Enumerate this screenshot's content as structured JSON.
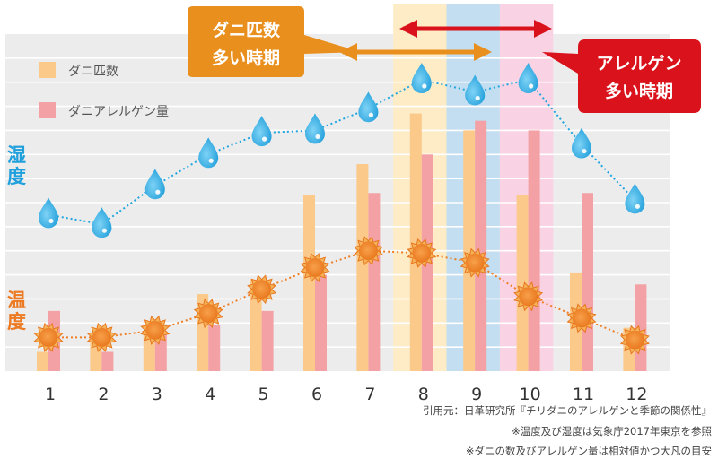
{
  "chart_data": {
    "type": "bar",
    "categories": [
      "1",
      "2",
      "3",
      "4",
      "5",
      "6",
      "7",
      "8",
      "9",
      "10",
      "11",
      "12"
    ],
    "series": [
      {
        "name": "ダニ匹数",
        "kind": "bar",
        "color": "#fbc98a",
        "values": [
          0.8,
          1.2,
          1.6,
          3.2,
          3.8,
          7.3,
          8.6,
          10.7,
          10.0,
          7.3,
          4.1,
          1.8
        ]
      },
      {
        "name": "ダニアレルゲン量",
        "kind": "bar",
        "color": "#f3a1a4",
        "values": [
          2.5,
          0.8,
          1.5,
          1.9,
          2.5,
          4.0,
          7.4,
          9.0,
          10.4,
          10.0,
          7.4,
          3.6
        ]
      },
      {
        "name": "湿度",
        "kind": "line",
        "color": "#20a6df",
        "values": [
          6.5,
          6.1,
          7.7,
          9.0,
          9.9,
          10.0,
          10.9,
          12.1,
          11.6,
          12.1,
          9.4,
          7.1
        ]
      },
      {
        "name": "温度",
        "kind": "line",
        "color": "#ef7d22",
        "values": [
          1.4,
          1.4,
          1.7,
          2.4,
          3.4,
          4.3,
          5.0,
          4.9,
          4.5,
          3.1,
          2.2,
          1.3
        ]
      }
    ],
    "ylim": [
      0,
      14
    ],
    "grid": true,
    "legend_position": "top-left",
    "axis_labels": {
      "humidity": "湿度",
      "temperature": "温度"
    },
    "highlights": [
      {
        "from": "7",
        "to": "8",
        "color": "#fdecc6"
      },
      {
        "from": "8",
        "to": "9",
        "color": "#c2def0"
      },
      {
        "from": "9",
        "to": "10",
        "color": "#f9d3e4"
      }
    ],
    "annotations": {
      "mite_peak": {
        "lines": [
          "ダニ匹数",
          "多い時期"
        ],
        "color": "#e98f1e",
        "range": [
          "7",
          "9"
        ]
      },
      "allergen_peak": {
        "lines": [
          "アレルゲン",
          "多い時期"
        ],
        "color": "#d9121b",
        "range": [
          "8",
          "10"
        ]
      }
    }
  },
  "footnotes": [
    "引用元：日革研究所『チリダニのアレルゲンと季節の関係性』",
    "※温度及び湿度は気象庁2017年東京を参照",
    "※ダニの数及びアレルゲン量は相対値かつ大凡の目安"
  ]
}
